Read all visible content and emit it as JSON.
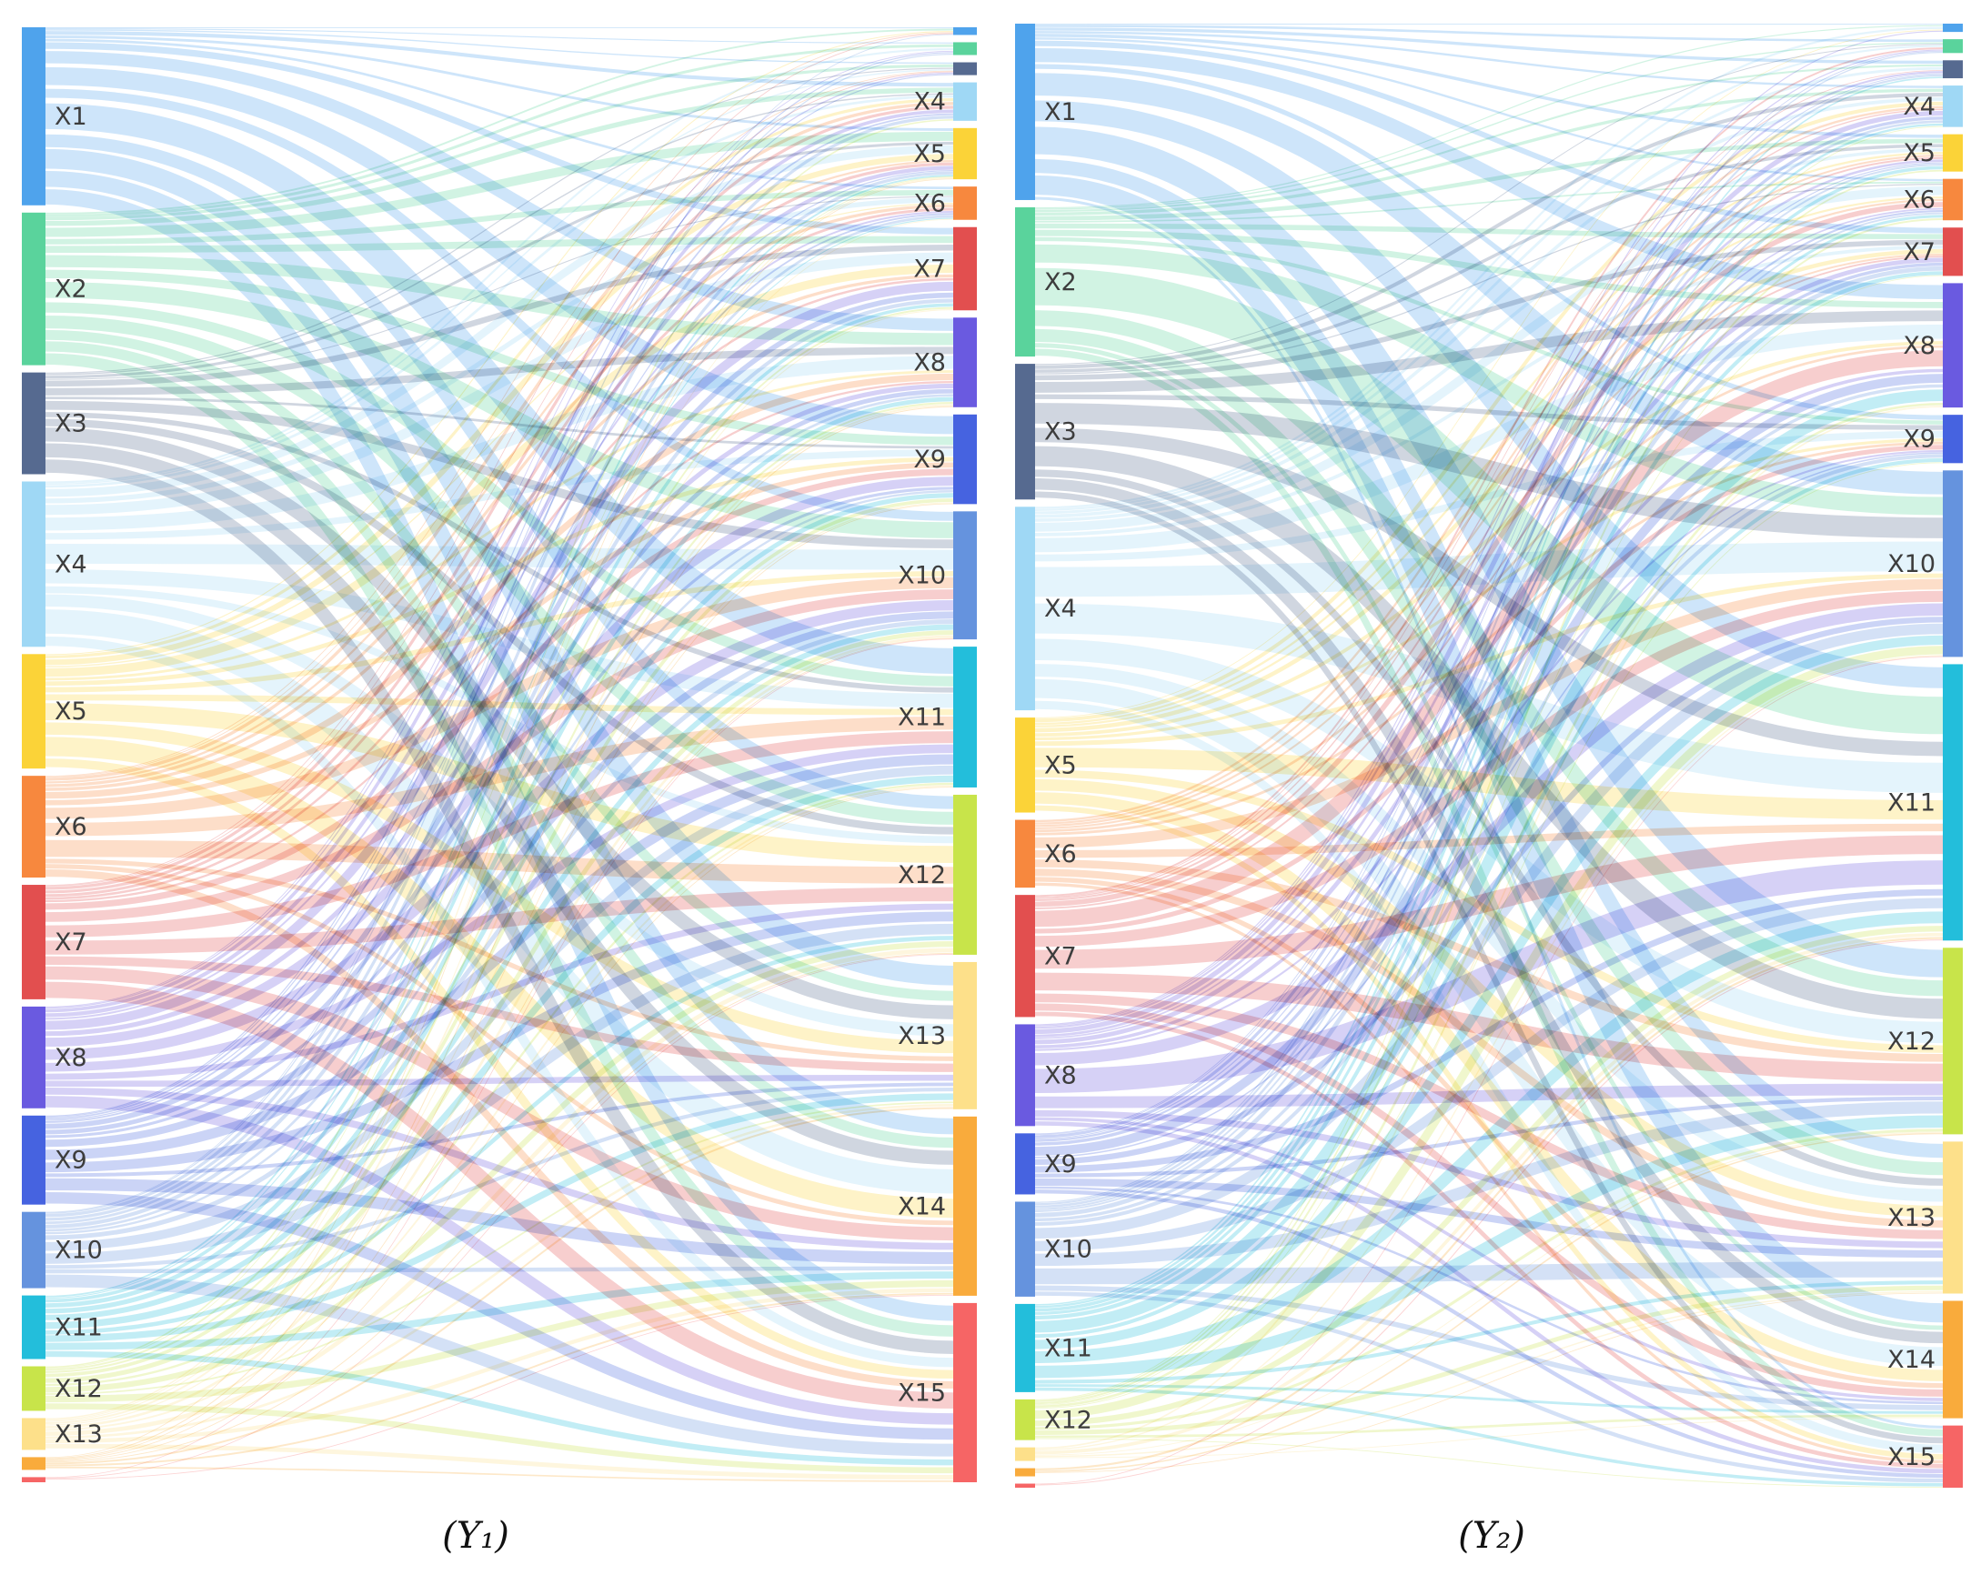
{
  "colors": {
    "X1": "#4fa3ec",
    "X2": "#5ad39c",
    "X3": "#566a90",
    "X4": "#9fd8f5",
    "X5": "#fbd338",
    "X6": "#f7883e",
    "X7": "#e24f4f",
    "X8": "#6a5ae0",
    "X9": "#4663e0",
    "X10": "#6593de",
    "X11": "#23bedb",
    "X12": "#c8e44a",
    "X13": "#fde08a",
    "X14": "#f9ab3c",
    "X15": "#f66565"
  },
  "panels": [
    {
      "id": "Y1",
      "caption": "(Y₁)",
      "sources": [
        {
          "name": "X1",
          "label": "X1",
          "value": 14
        },
        {
          "name": "X2",
          "label": "X2",
          "value": 12
        },
        {
          "name": "X3",
          "label": "X3",
          "value": 8
        },
        {
          "name": "X4",
          "label": "X4",
          "value": 13
        },
        {
          "name": "X5",
          "label": "X5",
          "value": 9
        },
        {
          "name": "X6",
          "label": "X6",
          "value": 8
        },
        {
          "name": "X7",
          "label": "X7",
          "value": 9
        },
        {
          "name": "X8",
          "label": "X8",
          "value": 8
        },
        {
          "name": "X9",
          "label": "X9",
          "value": 7
        },
        {
          "name": "X10",
          "label": "X10",
          "value": 6
        },
        {
          "name": "X11",
          "label": "X11",
          "value": 5
        },
        {
          "name": "X12",
          "label": "X12",
          "value": 3.5
        },
        {
          "name": "X13",
          "label": "X13",
          "value": 2.5
        },
        {
          "name": "X14",
          "label": "",
          "value": 1
        },
        {
          "name": "X15",
          "label": "",
          "value": 0.4
        }
      ],
      "targets": [
        {
          "name": "X1",
          "label": "",
          "value": 0.6
        },
        {
          "name": "X2",
          "label": "",
          "value": 1
        },
        {
          "name": "X3",
          "label": "",
          "value": 1
        },
        {
          "name": "X4",
          "label": "X4",
          "value": 3
        },
        {
          "name": "X5",
          "label": "X5",
          "value": 4
        },
        {
          "name": "X6",
          "label": "X6",
          "value": 2.6
        },
        {
          "name": "X7",
          "label": "X7",
          "value": 6.5
        },
        {
          "name": "X8",
          "label": "X8",
          "value": 7
        },
        {
          "name": "X9",
          "label": "X9",
          "value": 7
        },
        {
          "name": "X10",
          "label": "X10",
          "value": 10
        },
        {
          "name": "X11",
          "label": "X11",
          "value": 11
        },
        {
          "name": "X12",
          "label": "X12",
          "value": 12.5
        },
        {
          "name": "X13",
          "label": "X13",
          "value": 11.5
        },
        {
          "name": "X14",
          "label": "X14",
          "value": 14
        },
        {
          "name": "X15",
          "label": "X15",
          "value": 14
        }
      ]
    },
    {
      "id": "Y2",
      "caption": "(Y₂)",
      "sources": [
        {
          "name": "X1",
          "label": "X1",
          "value": 13
        },
        {
          "name": "X2",
          "label": "X2",
          "value": 11
        },
        {
          "name": "X3",
          "label": "X3",
          "value": 10
        },
        {
          "name": "X4",
          "label": "X4",
          "value": 15
        },
        {
          "name": "X5",
          "label": "X5",
          "value": 7
        },
        {
          "name": "X6",
          "label": "X6",
          "value": 5
        },
        {
          "name": "X7",
          "label": "X7",
          "value": 9
        },
        {
          "name": "X8",
          "label": "X8",
          "value": 7.5
        },
        {
          "name": "X9",
          "label": "X9",
          "value": 4.5
        },
        {
          "name": "X10",
          "label": "X10",
          "value": 7
        },
        {
          "name": "X11",
          "label": "X11",
          "value": 6.5
        },
        {
          "name": "X12",
          "label": "X12",
          "value": 3
        },
        {
          "name": "X13",
          "label": "",
          "value": 1
        },
        {
          "name": "X14",
          "label": "",
          "value": 0.6
        },
        {
          "name": "X15",
          "label": "",
          "value": 0.3
        }
      ],
      "targets": [
        {
          "name": "X1",
          "label": "",
          "value": 0.6
        },
        {
          "name": "X2",
          "label": "",
          "value": 1
        },
        {
          "name": "X3",
          "label": "",
          "value": 1.3
        },
        {
          "name": "X4",
          "label": "X4",
          "value": 3
        },
        {
          "name": "X5",
          "label": "X5",
          "value": 2.7
        },
        {
          "name": "X6",
          "label": "X6",
          "value": 3
        },
        {
          "name": "X7",
          "label": "X7",
          "value": 3.5
        },
        {
          "name": "X8",
          "label": "X8",
          "value": 9
        },
        {
          "name": "X9",
          "label": "X9",
          "value": 3.5
        },
        {
          "name": "X10",
          "label": "X10",
          "value": 13.5
        },
        {
          "name": "X11",
          "label": "X11",
          "value": 20
        },
        {
          "name": "X12",
          "label": "X12",
          "value": 13.5
        },
        {
          "name": "X13",
          "label": "X13",
          "value": 11
        },
        {
          "name": "X14",
          "label": "X14",
          "value": 8.5
        },
        {
          "name": "X15",
          "label": "X15",
          "value": 4.5
        }
      ]
    }
  ]
}
